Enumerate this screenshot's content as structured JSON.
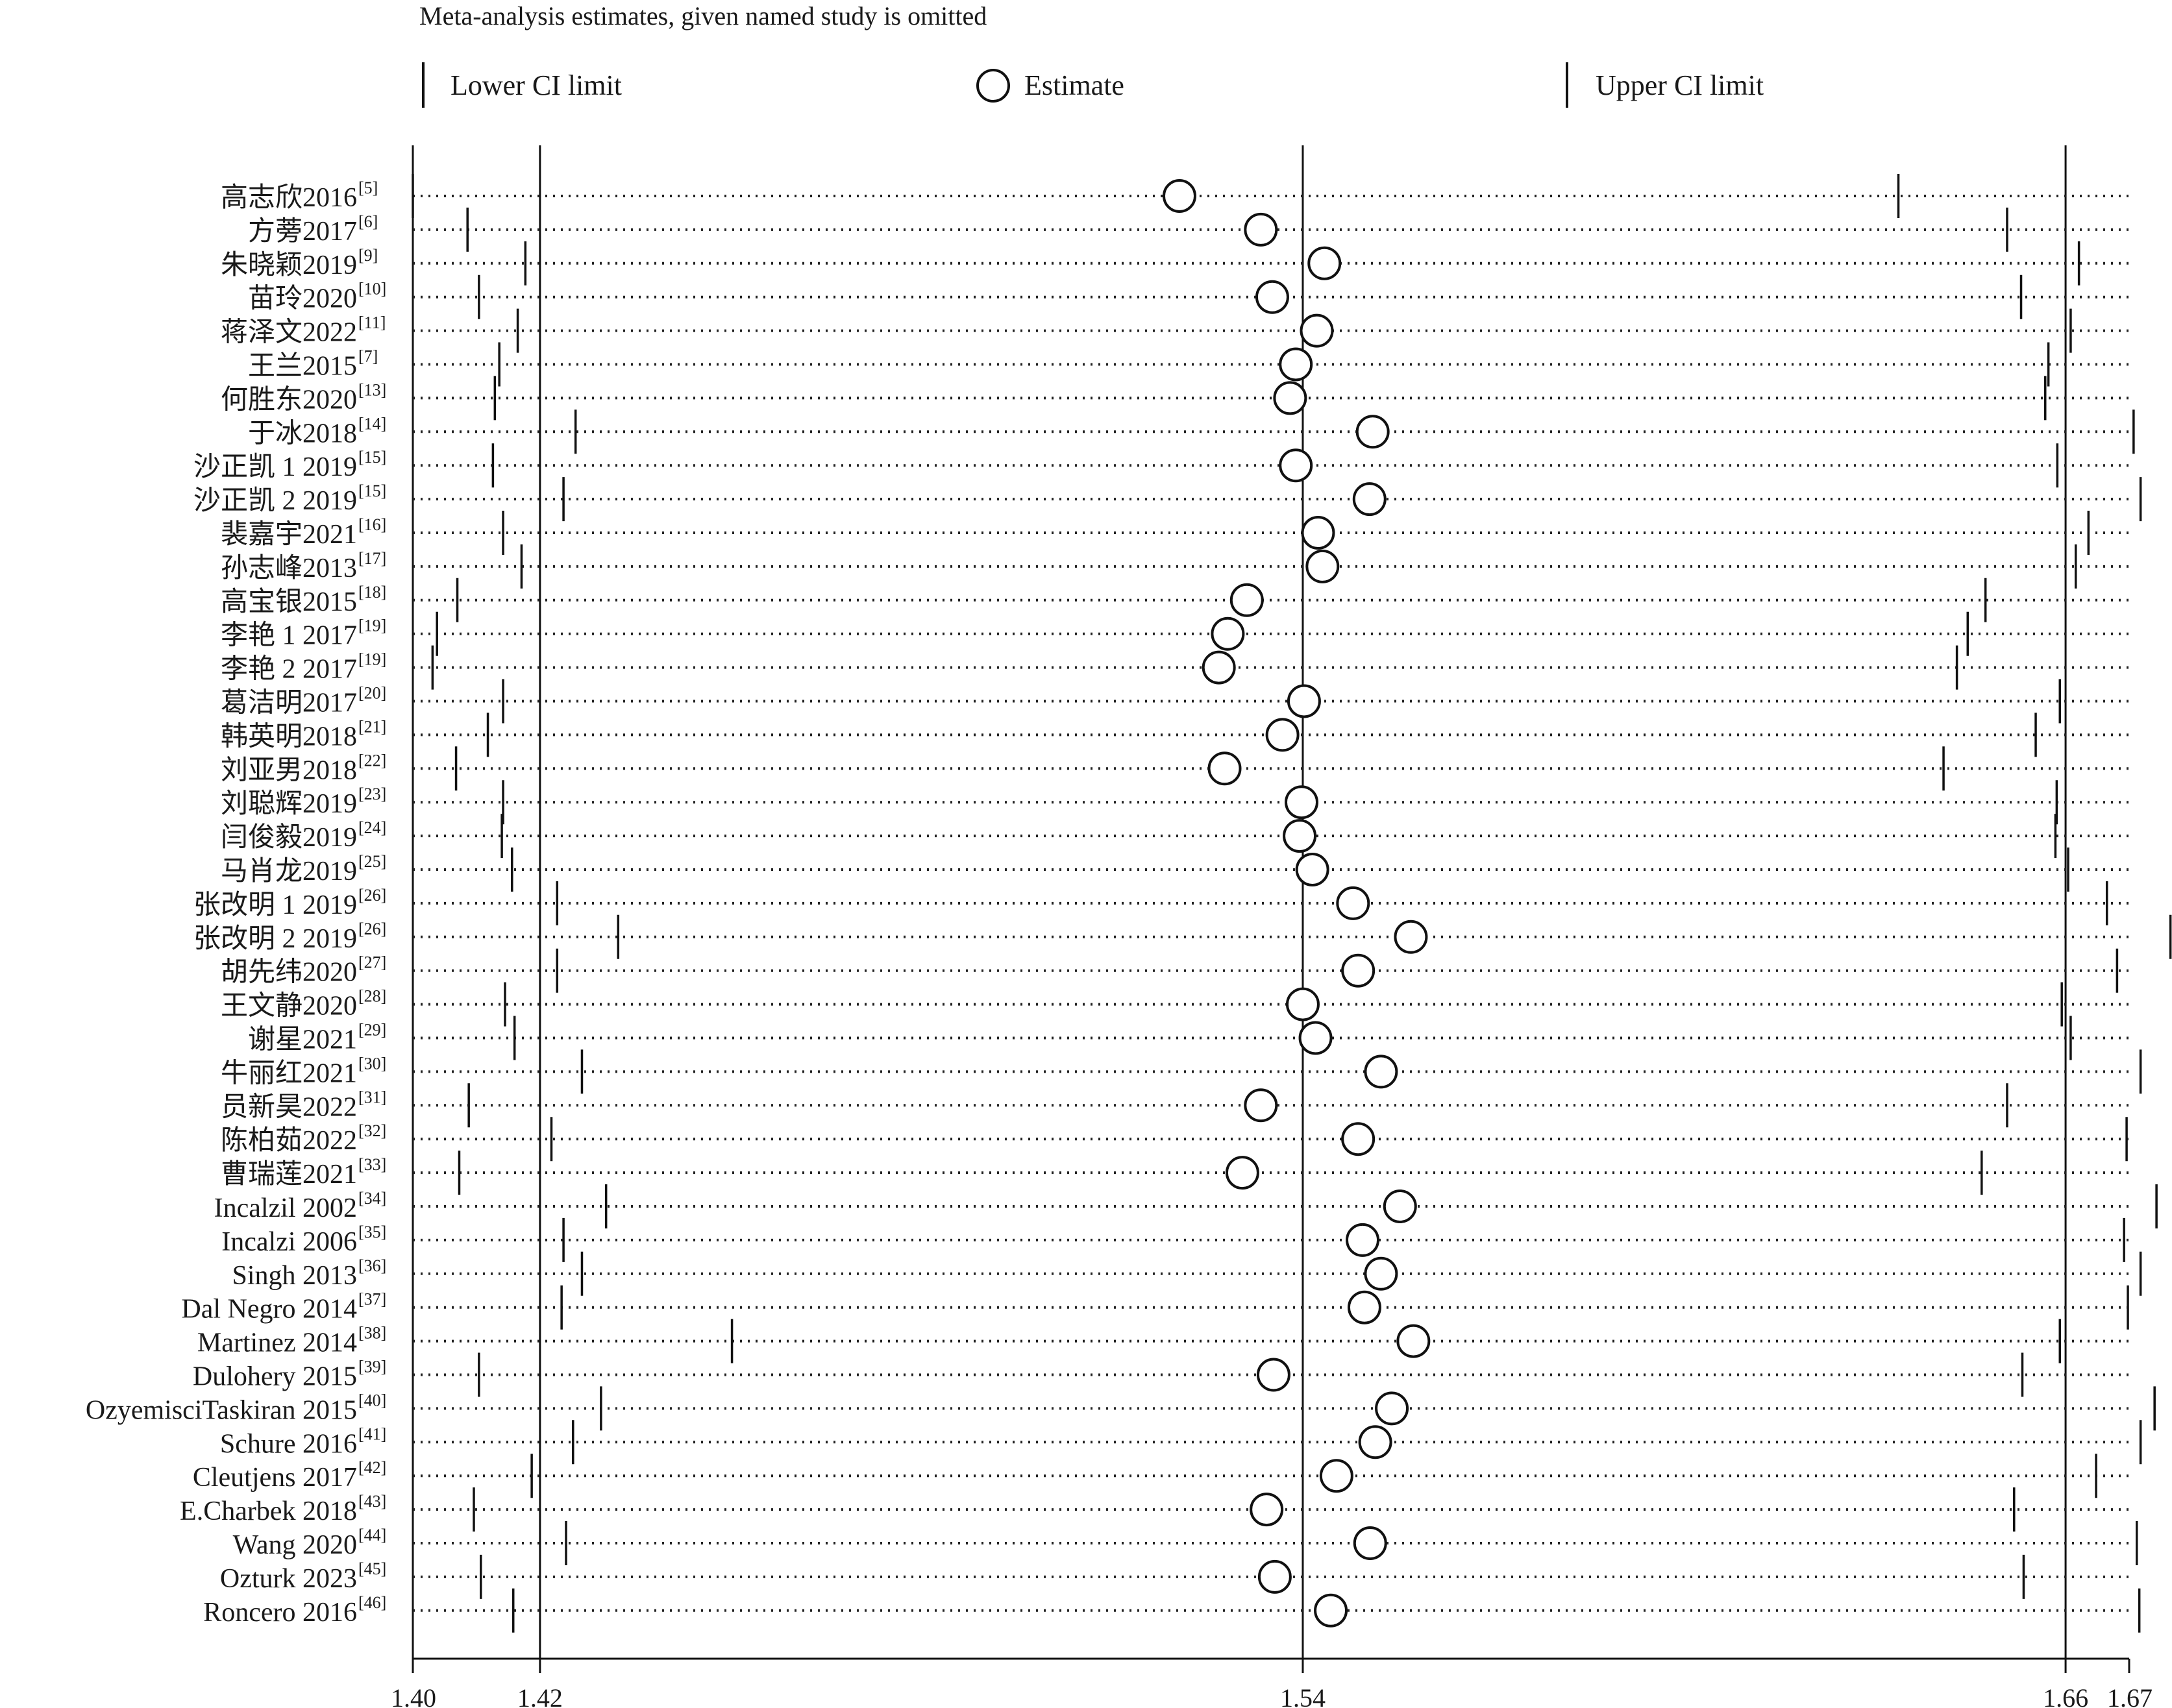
{
  "chart_data": {
    "type": "scatter",
    "title": "Meta-analysis estimates, given named study is omitted",
    "legend": {
      "position": "top",
      "lower": "Lower CI limit",
      "estimate": "Estimate",
      "upper": "Upper CI limit"
    },
    "xlim": [
      1.4,
      1.67
    ],
    "xticks": [
      "1.40",
      "1.42",
      "1.54",
      "1.66",
      "1.67"
    ],
    "reference_lines": [
      1.42,
      1.54,
      1.66
    ],
    "studies": [
      {
        "label": "高志欣2016",
        "ref": "[5]",
        "lower": 1.4,
        "estimate": 1.5206,
        "upper": 1.6337
      },
      {
        "label": "方蒡2017",
        "ref": "[6]",
        "lower": 1.4086,
        "estimate": 1.5334,
        "upper": 1.6508
      },
      {
        "label": "朱晓颖2019",
        "ref": "[9]",
        "lower": 1.4177,
        "estimate": 1.5434,
        "upper": 1.6621
      },
      {
        "label": "苗玲2020",
        "ref": "[10]",
        "lower": 1.4104,
        "estimate": 1.5352,
        "upper": 1.653
      },
      {
        "label": "蒋泽文2022",
        "ref": "[11]",
        "lower": 1.4165,
        "estimate": 1.5422,
        "upper": 1.6608
      },
      {
        "label": "王兰2015",
        "ref": "[7]",
        "lower": 1.4136,
        "estimate": 1.5389,
        "upper": 1.6573
      },
      {
        "label": "何胜东2020",
        "ref": "[13]",
        "lower": 1.4129,
        "estimate": 1.538,
        "upper": 1.6568
      },
      {
        "label": "于冰2018",
        "ref": "[14]",
        "lower": 1.4256,
        "estimate": 1.551,
        "upper": 1.6707
      },
      {
        "label": "沙正凯 1 2019",
        "ref": "[15]",
        "lower": 1.4126,
        "estimate": 1.5389,
        "upper": 1.6587
      },
      {
        "label": "沙正凯 2 2019",
        "ref": "[15]",
        "lower": 1.4237,
        "estimate": 1.5505,
        "upper": 1.6718
      },
      {
        "label": "裴嘉宇2021",
        "ref": "[16]",
        "lower": 1.4142,
        "estimate": 1.5424,
        "upper": 1.6636
      },
      {
        "label": "孙志峰2013",
        "ref": "[17]",
        "lower": 1.4171,
        "estimate": 1.5431,
        "upper": 1.6616
      },
      {
        "label": "高宝银2015",
        "ref": "[18]",
        "lower": 1.407,
        "estimate": 1.5312,
        "upper": 1.6474
      },
      {
        "label": "李艳 1 2017",
        "ref": "[19]",
        "lower": 1.4038,
        "estimate": 1.5282,
        "upper": 1.6446
      },
      {
        "label": "李艳 2 2017",
        "ref": "[19]",
        "lower": 1.4031,
        "estimate": 1.5268,
        "upper": 1.6429
      },
      {
        "label": "葛洁明2017",
        "ref": "[20]",
        "lower": 1.4142,
        "estimate": 1.5402,
        "upper": 1.6591
      },
      {
        "label": "韩英明2018",
        "ref": "[21]",
        "lower": 1.4118,
        "estimate": 1.5368,
        "upper": 1.6553
      },
      {
        "label": "刘亚男2018",
        "ref": "[22]",
        "lower": 1.4068,
        "estimate": 1.5277,
        "upper": 1.6408
      },
      {
        "label": "刘聪辉2019",
        "ref": "[23]",
        "lower": 1.4142,
        "estimate": 1.5398,
        "upper": 1.6586
      },
      {
        "label": "闫俊毅2019",
        "ref": "[24]",
        "lower": 1.414,
        "estimate": 1.5395,
        "upper": 1.6584
      },
      {
        "label": "马肖龙2019",
        "ref": "[25]",
        "lower": 1.4156,
        "estimate": 1.5415,
        "upper": 1.6604
      },
      {
        "label": "张改明 1 2019",
        "ref": "[26]",
        "lower": 1.4227,
        "estimate": 1.5479,
        "upper": 1.6665
      },
      {
        "label": "张改明 2 2019",
        "ref": "[26]",
        "lower": 1.4323,
        "estimate": 1.557,
        "upper": 1.6765
      },
      {
        "label": "胡先纬2020",
        "ref": "[27]",
        "lower": 1.4227,
        "estimate": 1.5487,
        "upper": 1.6681
      },
      {
        "label": "王文静2020",
        "ref": "[28]",
        "lower": 1.4145,
        "estimate": 1.54,
        "upper": 1.6594
      },
      {
        "label": "谢星2021",
        "ref": "[29]",
        "lower": 1.416,
        "estimate": 1.542,
        "upper": 1.6608
      },
      {
        "label": "牛丽红2021",
        "ref": "[30]",
        "lower": 1.4266,
        "estimate": 1.5523,
        "upper": 1.6718
      },
      {
        "label": "员新昊2022",
        "ref": "[31]",
        "lower": 1.4088,
        "estimate": 1.5334,
        "upper": 1.6508
      },
      {
        "label": "陈柏茹2022",
        "ref": "[32]",
        "lower": 1.4218,
        "estimate": 1.5487,
        "upper": 1.6696
      },
      {
        "label": "曹瑞莲2021",
        "ref": "[33]",
        "lower": 1.4073,
        "estimate": 1.5305,
        "upper": 1.6468
      },
      {
        "label": "Incalzil 2002",
        "ref": "[34]",
        "lower": 1.4304,
        "estimate": 1.5553,
        "upper": 1.6743
      },
      {
        "label": "Incalzi 2006",
        "ref": "[35]",
        "lower": 1.4237,
        "estimate": 1.5494,
        "upper": 1.6692
      },
      {
        "label": "Singh 2013",
        "ref": "[36]",
        "lower": 1.4266,
        "estimate": 1.5523,
        "upper": 1.6718
      },
      {
        "label": "Dal Negro 2014",
        "ref": "[37]",
        "lower": 1.4234,
        "estimate": 1.5497,
        "upper": 1.6698
      },
      {
        "label": "Martinez 2014",
        "ref": "[38]",
        "lower": 1.4502,
        "estimate": 1.5574,
        "upper": 1.6591
      },
      {
        "label": "Dulohery 2015",
        "ref": "[39]",
        "lower": 1.4104,
        "estimate": 1.5354,
        "upper": 1.6532
      },
      {
        "label": "OzyemisciTaskiran 2015",
        "ref": "[40]",
        "lower": 1.4296,
        "estimate": 1.554,
        "upper": 1.674
      },
      {
        "label": "Schure 2016",
        "ref": "[41]",
        "lower": 1.4252,
        "estimate": 1.5514,
        "upper": 1.6718
      },
      {
        "label": "Cleutjens 2017",
        "ref": "[42]",
        "lower": 1.4187,
        "estimate": 1.5453,
        "upper": 1.6648
      },
      {
        "label": "E.Charbek 2018",
        "ref": "[43]",
        "lower": 1.4096,
        "estimate": 1.5343,
        "upper": 1.6519
      },
      {
        "label": "Wang 2020",
        "ref": "[44]",
        "lower": 1.4241,
        "estimate": 1.5506,
        "upper": 1.6712
      },
      {
        "label": "Ozturk 2023",
        "ref": "[45]",
        "lower": 1.4107,
        "estimate": 1.5356,
        "upper": 1.6534
      },
      {
        "label": "Roncero 2016",
        "ref": "[46]",
        "lower": 1.4158,
        "estimate": 1.5444,
        "upper": 1.6716
      }
    ]
  }
}
